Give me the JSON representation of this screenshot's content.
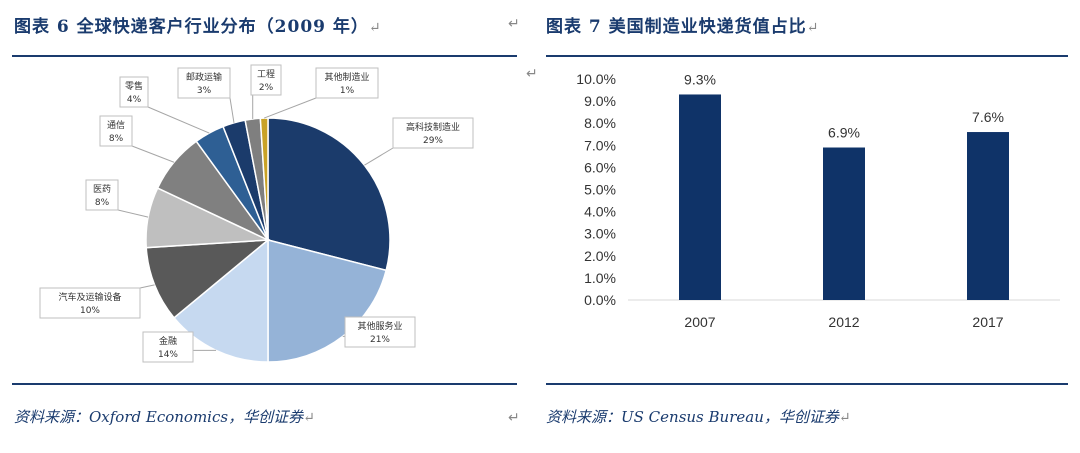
{
  "left": {
    "title": "图表 6   全球快递客户行业分布（2009 年）",
    "source": "资料来源：Oxford Economics，华创证券"
  },
  "right": {
    "title": "图表 7   美国制造业快递货值占比",
    "source": "资料来源：US Census Bureau，华创证券"
  },
  "return_mark": "↵",
  "chart_data": [
    {
      "type": "pie",
      "title": "全球快递客户行业分布（2009 年）",
      "unit": "%",
      "slices": [
        {
          "label": "高科技制造业",
          "value": 29,
          "value_label": "29%",
          "color": "#1b3b6b"
        },
        {
          "label": "其他服务业",
          "value": 21,
          "value_label": "21%",
          "color": "#95b3d7"
        },
        {
          "label": "金融",
          "value": 14,
          "value_label": "14%",
          "color": "#c6d9f0"
        },
        {
          "label": "汽车及运输设备",
          "value": 10,
          "value_label": "10%",
          "color": "#595959"
        },
        {
          "label": "医药",
          "value": 8,
          "value_label": "8%",
          "color": "#bfbfbf"
        },
        {
          "label": "通信",
          "value": 8,
          "value_label": "8%",
          "color": "#808080"
        },
        {
          "label": "零售",
          "value": 4,
          "value_label": "4%",
          "color": "#2e5f94"
        },
        {
          "label": "邮政运输",
          "value": 3,
          "value_label": "3%",
          "color": "#1b3b6b"
        },
        {
          "label": "工程",
          "value": 2,
          "value_label": "2%",
          "color": "#7f7f7f"
        },
        {
          "label": "其他制造业",
          "value": 1,
          "value_label": "1%",
          "color": "#c9a227"
        }
      ]
    },
    {
      "type": "bar",
      "title": "美国制造业快递货值占比",
      "categories": [
        "2007",
        "2012",
        "2017"
      ],
      "values": [
        9.3,
        6.9,
        7.6
      ],
      "value_labels": [
        "9.3%",
        "6.9%",
        "7.6%"
      ],
      "ylim": [
        0,
        10
      ],
      "yticks": [
        "0.0%",
        "1.0%",
        "2.0%",
        "3.0%",
        "4.0%",
        "5.0%",
        "6.0%",
        "7.0%",
        "8.0%",
        "9.0%",
        "10.0%"
      ],
      "bar_color": "#0f3368",
      "grid": false
    }
  ]
}
